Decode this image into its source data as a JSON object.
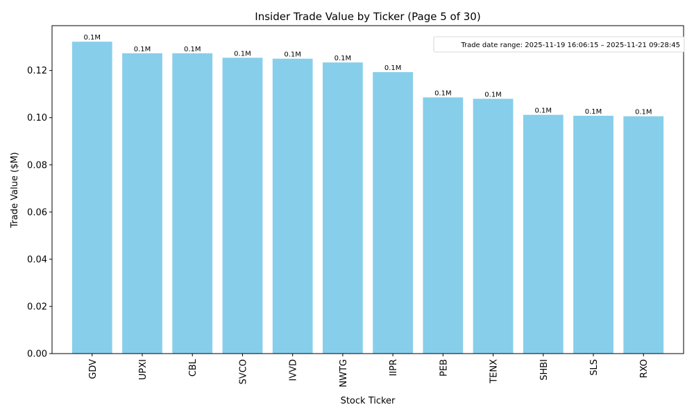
{
  "chart_data": {
    "type": "bar",
    "title": "Insider Trade Value by Ticker (Page 5 of 30)",
    "xlabel": "Stock Ticker",
    "ylabel": "Trade Value ($M)",
    "ylim": [
      0,
      0.139
    ],
    "yticks": [
      0.0,
      0.02,
      0.04,
      0.06,
      0.08,
      0.1,
      0.12
    ],
    "ytick_labels": [
      "0.00",
      "0.02",
      "0.04",
      "0.06",
      "0.08",
      "0.10",
      "0.12"
    ],
    "categories": [
      "GDV",
      "UPXI",
      "CBL",
      "SVCO",
      "IVVD",
      "NWTG",
      "IIPR",
      "PEB",
      "TENX",
      "SHBI",
      "SLS",
      "RXO"
    ],
    "values": [
      0.1322,
      0.1273,
      0.1273,
      0.1254,
      0.125,
      0.1234,
      0.1193,
      0.1086,
      0.108,
      0.1012,
      0.1008,
      0.1006
    ],
    "data_labels": [
      "0.1M",
      "0.1M",
      "0.1M",
      "0.1M",
      "0.1M",
      "0.1M",
      "0.1M",
      "0.1M",
      "0.1M",
      "0.1M",
      "0.1M",
      "0.1M"
    ],
    "bar_color": "#87ceeb",
    "annotation": "Trade date range: 2025-11-19 16:06:15 – 2025-11-21 09:28:45",
    "annotation_position": "top-right",
    "grid": false
  }
}
